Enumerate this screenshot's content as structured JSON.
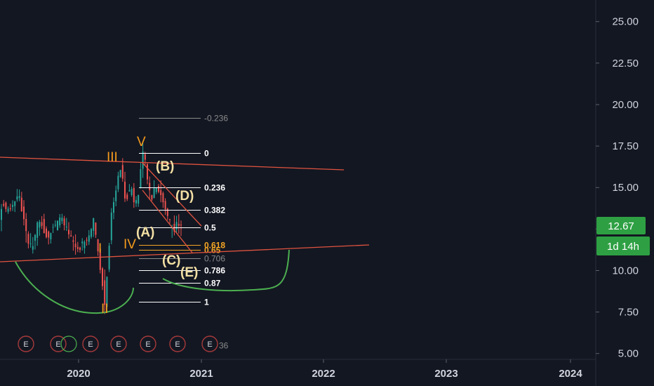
{
  "chart_data": {
    "type": "candlestick",
    "y_axis": {
      "ticks": [
        "25.00",
        "22.50",
        "20.00",
        "17.50",
        "15.00",
        "12.50",
        "10.00",
        "7.50",
        "5.00"
      ],
      "tick_values": [
        25,
        22.5,
        20,
        17.5,
        15,
        12.5,
        10,
        7.5,
        5
      ],
      "range": [
        4.65,
        26.3
      ]
    },
    "x_axis": {
      "ticks": [
        "2020",
        "2021",
        "2022",
        "2023",
        "2024"
      ],
      "range": [
        "2019-01-01",
        "2024-05-01"
      ]
    },
    "last_price": {
      "label": "12.67",
      "value": 12.67
    },
    "countdown": "1d 14h",
    "fibonacci": [
      {
        "label": "-0.236",
        "value": 19.18,
        "color": "#8a8a8a"
      },
      {
        "label": "0",
        "value": 17.1,
        "color": "#ffffff"
      },
      {
        "label": "0.236",
        "value": 15.0,
        "color": "#ffffff"
      },
      {
        "label": "0.382",
        "value": 13.65,
        "color": "#ffffff"
      },
      {
        "label": "0.5",
        "value": 12.6,
        "color": "#ffffff"
      },
      {
        "label": "0.618",
        "value": 11.55,
        "color": "#f5a623"
      },
      {
        "label": "0.65",
        "value": 11.25,
        "color": "#f5a623"
      },
      {
        "label": "0.706",
        "value": 10.75,
        "color": "#8a8a8a"
      },
      {
        "label": "0.786",
        "value": 10.0,
        "color": "#ffffff"
      },
      {
        "label": "0.87",
        "value": 9.25,
        "color": "#ffffff"
      },
      {
        "label": "1",
        "value": 8.1,
        "color": "#ffffff"
      },
      {
        "label": "36",
        "value": 5.5,
        "color": "#8a8a8a"
      }
    ],
    "wave_labels": [
      {
        "text": "III",
        "color": "#f59b1b"
      },
      {
        "text": "V",
        "color": "#f59b1b"
      },
      {
        "text": "I",
        "color": "#f59b1b"
      },
      {
        "text": "II",
        "color": "#f59b1b"
      },
      {
        "text": "IV",
        "color": "#f59b1b"
      },
      {
        "text": "(A)",
        "color": "#f3e0a4"
      },
      {
        "text": "(B)",
        "color": "#f3e0a4"
      },
      {
        "text": "(C)",
        "color": "#f3e0a4"
      },
      {
        "text": "(D)",
        "color": "#f3e0a4"
      },
      {
        "text": "(E)",
        "color": "#f3e0a4"
      }
    ],
    "earnings_markers": [
      "E",
      "E",
      "E",
      "E",
      "E",
      "E",
      "E"
    ],
    "colors": {
      "background": "#131722",
      "up": "#26a69a",
      "down": "#ef5350",
      "trendline": "#e0533f",
      "arc": "#4caf50",
      "price_tag": "#2ea043",
      "axis_text": "#d1d4dc"
    }
  }
}
